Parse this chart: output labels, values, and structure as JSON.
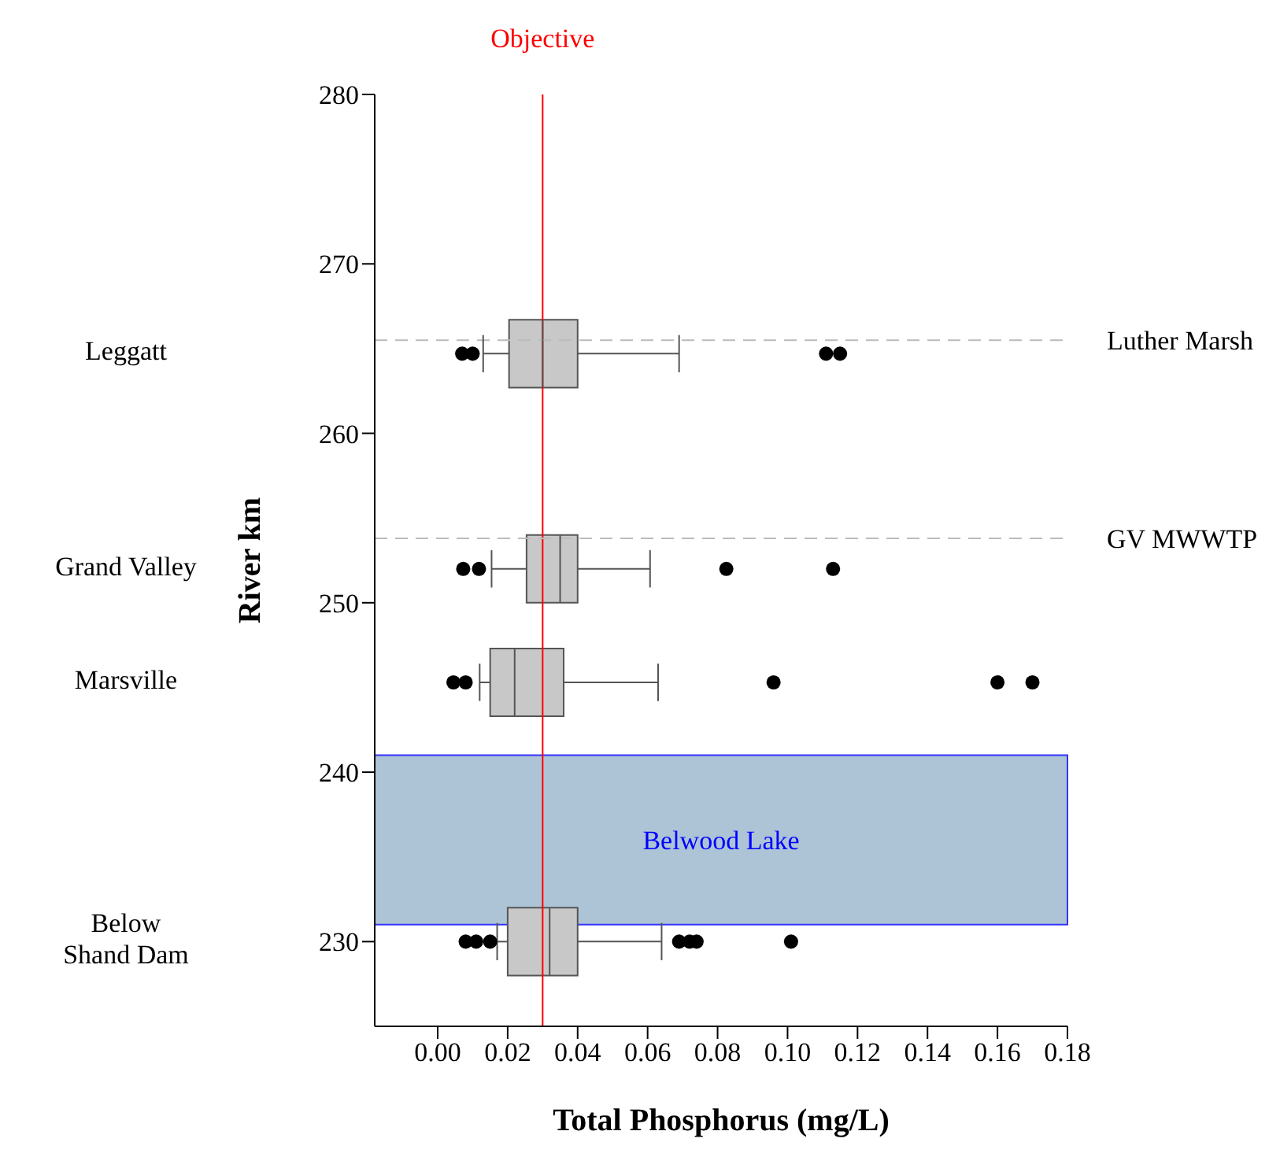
{
  "chart_data": {
    "type": "box",
    "orientation": "horizontal",
    "xlabel": "Total Phosphorus (mg/L)",
    "ylabel": "River km",
    "annotations": [
      "Leggatt",
      "Grand Valley",
      "Marsville",
      "Below Shand Dam"
    ],
    "x": [
      264.7,
      252,
      245.3,
      230
    ],
    "color": "#c8c8c8",
    "boxes": [
      {
        "low": 0.013,
        "q1": 0.0204,
        "median": 0.03,
        "q3": 0.04,
        "high": 0.069,
        "outliers": [
          0.007,
          0.01,
          0.111,
          0.115
        ]
      },
      {
        "low": 0.0154,
        "q1": 0.0254,
        "median": 0.035,
        "q3": 0.04,
        "high": 0.0607,
        "outliers": [
          0.0073,
          0.0118,
          0.0825,
          0.113
        ]
      },
      {
        "low": 0.012,
        "q1": 0.015,
        "median": 0.022,
        "q3": 0.036,
        "high": 0.063,
        "outliers": [
          0.0045,
          0.008,
          0.096,
          0.16,
          0.17
        ]
      },
      {
        "low": 0.017,
        "q1": 0.02,
        "median": 0.032,
        "q3": 0.04,
        "high": 0.064,
        "outliers": [
          0.008,
          0.011,
          0.015,
          0.069,
          0.072,
          0.074,
          0.101
        ]
      }
    ],
    "xlim": [
      -0.018,
      0.18
    ],
    "xticks": [
      {
        "value": 0,
        "label": "0.00"
      },
      {
        "value": 0.02,
        "label": "0.02"
      },
      {
        "value": 0.04,
        "label": "0.04"
      },
      {
        "value": 0.06,
        "label": "0.06"
      },
      {
        "value": 0.08,
        "label": "0.08"
      },
      {
        "value": 0.1,
        "label": "0.10"
      },
      {
        "value": 0.12,
        "label": "0.12"
      },
      {
        "value": 0.14,
        "label": "0.14"
      },
      {
        "value": 0.16,
        "label": "0.16"
      },
      {
        "value": 0.18,
        "label": "0.18"
      }
    ],
    "ylim": [
      225,
      280
    ],
    "yticks": [
      230,
      240,
      250,
      260,
      270,
      280
    ],
    "ref_lines": [
      {
        "axis": "x",
        "value": 0.03,
        "label": "Objective",
        "color": "#ff0000",
        "line_style": "solid"
      },
      {
        "axis": "y",
        "value": 265.5,
        "label": "Luther Marsh",
        "color": "#bbbbbb",
        "line_style": "dashed"
      },
      {
        "axis": "y",
        "value": 253.8,
        "label": "GV MWWTP",
        "color": "#bbbbbb",
        "line_style": "dashed"
      }
    ],
    "bands": [
      {
        "axis": "y",
        "from": 231,
        "to": 241,
        "label": "Belwood Lake",
        "color": "#adc4d6"
      }
    ]
  }
}
